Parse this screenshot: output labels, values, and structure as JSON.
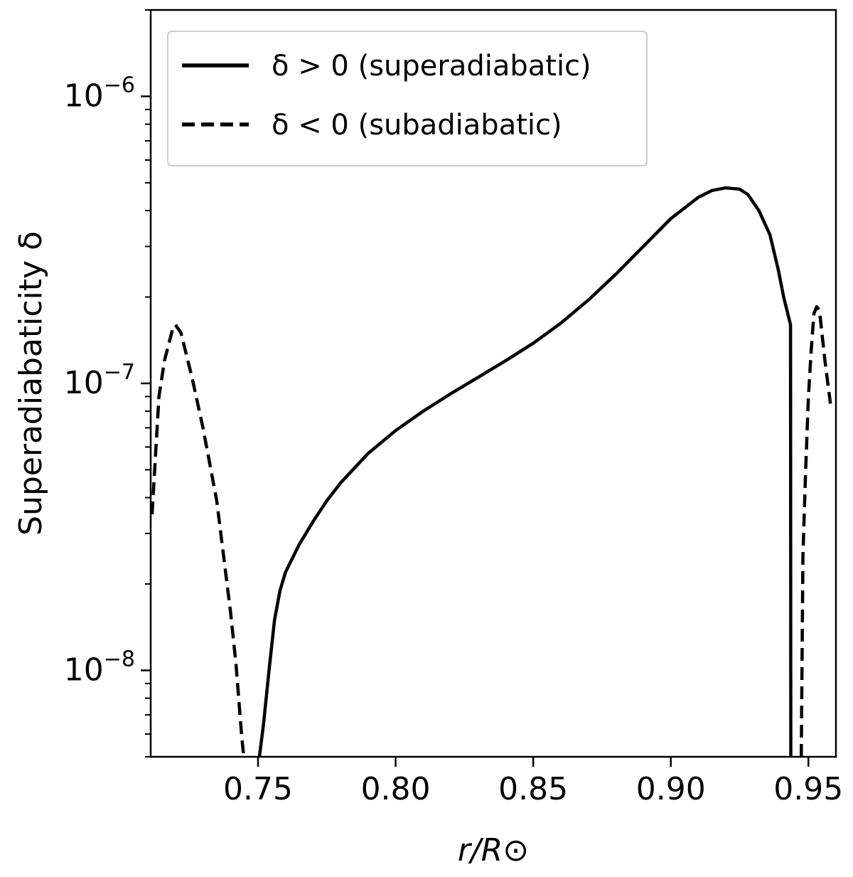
{
  "chart_data": {
    "type": "line",
    "xlabel": "r/R⊙",
    "ylabel": "Superadiabaticity δ",
    "yscale": "log",
    "xlim": [
      0.711,
      0.96
    ],
    "ylim": [
      5e-09,
      2e-06
    ],
    "xticks": [
      0.75,
      0.8,
      0.85,
      0.9,
      0.95
    ],
    "xtick_labels": [
      "0.75",
      "0.80",
      "0.85",
      "0.90",
      "0.95"
    ],
    "yticks_major": [
      1e-08,
      1e-07,
      1e-06
    ],
    "ytick_labels": [
      {
        "base": "10",
        "exp": "−8"
      },
      {
        "base": "10",
        "exp": "−7"
      },
      {
        "base": "10",
        "exp": "−6"
      }
    ],
    "grid": false,
    "legend_position": "top-left",
    "color": "#000000",
    "series": [
      {
        "name": "δ > 0 (superadiabatic)",
        "style": "solid",
        "x": [
          0.7505,
          0.752,
          0.754,
          0.756,
          0.758,
          0.76,
          0.765,
          0.77,
          0.775,
          0.78,
          0.79,
          0.8,
          0.81,
          0.82,
          0.83,
          0.84,
          0.85,
          0.86,
          0.87,
          0.88,
          0.89,
          0.9,
          0.91,
          0.915,
          0.92,
          0.925,
          0.928,
          0.932,
          0.936,
          0.939,
          0.941,
          0.9435,
          0.9436
        ],
        "y": [
          5e-09,
          6.5e-09,
          1e-08,
          1.5e-08,
          1.9e-08,
          2.2e-08,
          2.75e-08,
          3.3e-08,
          3.9e-08,
          4.5e-08,
          5.7e-08,
          6.85e-08,
          8e-08,
          9.2e-08,
          1.05e-07,
          1.2e-07,
          1.38e-07,
          1.62e-07,
          1.95e-07,
          2.4e-07,
          3e-07,
          3.75e-07,
          4.45e-07,
          4.7e-07,
          4.8e-07,
          4.75e-07,
          4.55e-07,
          4e-07,
          3.3e-07,
          2.5e-07,
          2e-07,
          1.6e-07,
          5e-09
        ]
      },
      {
        "name": "δ < 0 (subadiabatic)",
        "style": "dashed",
        "segments": [
          {
            "x": [
              0.7115,
              0.714,
              0.716,
              0.719,
              0.72,
              0.722,
              0.726,
              0.73,
              0.735,
              0.74,
              0.742,
              0.744,
              0.7448
            ],
            "y": [
              3.5e-08,
              9e-08,
              1.2e-07,
              1.55e-07,
              1.6e-07,
              1.5e-07,
              1.05e-07,
              7e-08,
              3.9e-08,
              1.6e-08,
              1.05e-08,
              6e-09,
              5e-09
            ]
          },
          {
            "x": [
              0.9474,
              0.948,
              0.949,
              0.95,
              0.951,
              0.952,
              0.953,
              0.954,
              0.956,
              0.958
            ],
            "y": [
              5e-09,
              2.5e-08,
              5e-08,
              9e-08,
              1.3e-07,
              1.75e-07,
              1.85e-07,
              1.8e-07,
              1.2e-07,
              8.5e-08
            ]
          }
        ]
      }
    ]
  }
}
